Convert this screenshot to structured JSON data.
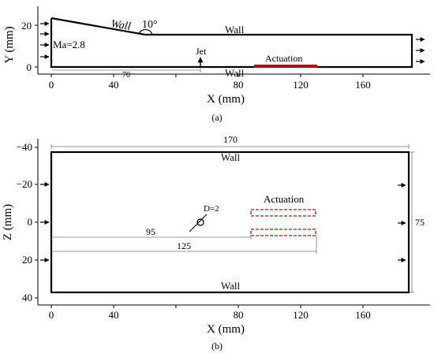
{
  "panel_a": {
    "y_axis_label": "Y (mm)",
    "x_axis_label": "X (mm)",
    "y_ticks": [
      "20",
      "0"
    ],
    "x_ticks": [
      "0",
      "40",
      "80",
      "120",
      "160"
    ],
    "labels": {
      "wall_inclined": "Wall",
      "angle": "10°",
      "wall_top": "Wall",
      "wall_bottom": "Wall",
      "mach": "Ma=2.8",
      "jet": "Jet",
      "actuation": "Actuation",
      "dimension": "70"
    },
    "caption": "(a)"
  },
  "panel_b": {
    "y_axis_label": "Z (mm)",
    "x_axis_label": "X (mm)",
    "y_ticks": [
      "−40",
      "−20",
      "0",
      "20",
      "40"
    ],
    "x_ticks": [
      "0",
      "40",
      "80",
      "120",
      "160"
    ],
    "labels": {
      "width_dim": "170",
      "height_dim": "75",
      "wall_top": "Wall",
      "wall_bottom": "Wall",
      "actuation": "Actuation",
      "diameter": "D=2",
      "dim_95": "95",
      "dim_125": "125"
    },
    "caption": "(b)"
  },
  "colors": {
    "line": "#000000",
    "actuation": "#aa1111",
    "dimension": "#777777"
  }
}
